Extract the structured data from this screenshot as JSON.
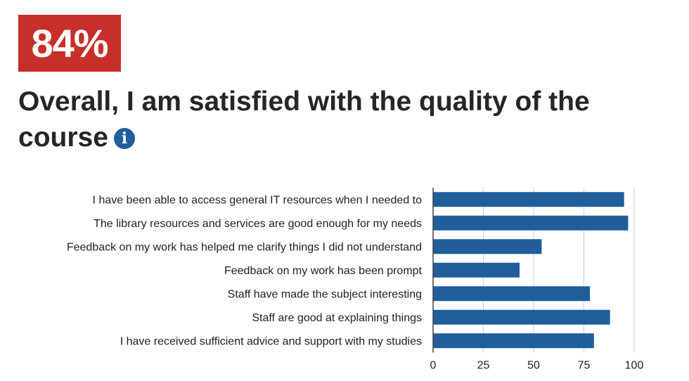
{
  "badge": {
    "value": "84%",
    "color": "#c62f2a"
  },
  "title": "Overall, I am satisfied with the quality of the course",
  "info_icon": {
    "name": "info-icon",
    "glyph": "i",
    "color": "#1f5e9b"
  },
  "chart_data": {
    "type": "bar",
    "orientation": "horizontal",
    "categories": [
      "I have been able to access general IT resources when I needed to",
      "The library resources and services are good enough for my needs",
      "Feedback on my work has helped me clarify things I did not understand",
      "Feedback on my work has been prompt",
      "Staff have made the subject interesting",
      "Staff are good at explaining things",
      "I have received sufficient advice and support with my studies"
    ],
    "values": [
      95,
      97,
      54,
      43,
      78,
      88,
      80
    ],
    "xlim": [
      0,
      100
    ],
    "xticks": [
      "0",
      "25",
      "50",
      "75",
      "100"
    ],
    "grid": true,
    "bar_color": "#1f5e9b"
  }
}
